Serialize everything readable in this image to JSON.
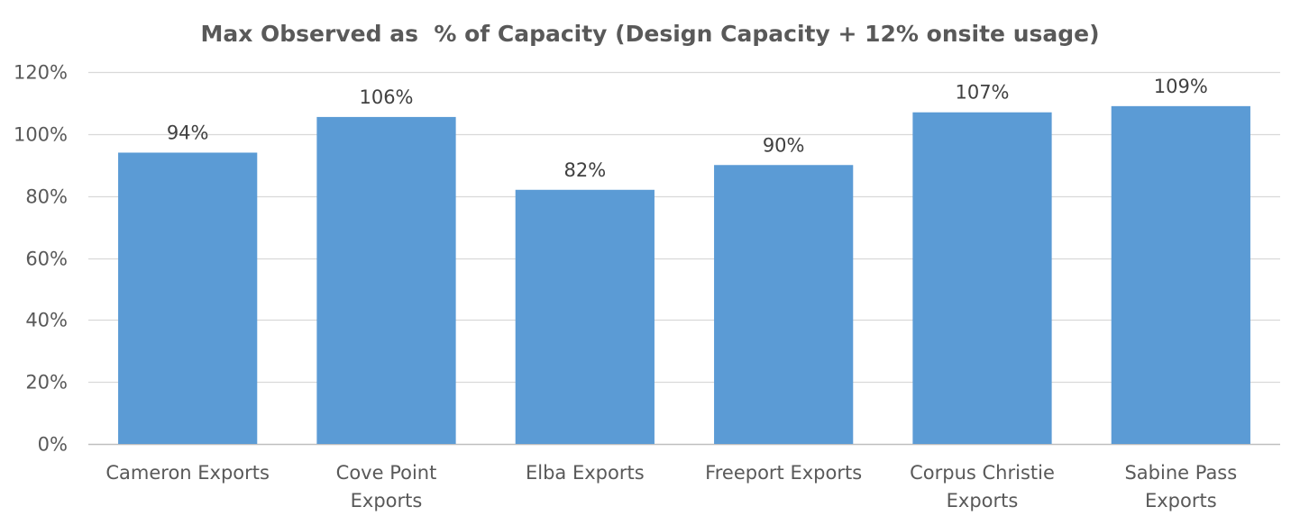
{
  "chart_data": {
    "type": "bar",
    "title": "Max Observed as  % of Capacity (Design Capacity + 12% onsite usage)",
    "xlabel": "",
    "ylabel": "",
    "categories": [
      [
        "Cameron Exports"
      ],
      [
        "Cove Point",
        "Exports"
      ],
      [
        "Elba Exports"
      ],
      [
        "Freeport Exports"
      ],
      [
        "Corpus Christie",
        "Exports"
      ],
      [
        "Sabine Pass",
        "Exports"
      ]
    ],
    "values": [
      0.94,
      1.055,
      0.82,
      0.9,
      1.07,
      1.09
    ],
    "data_labels": [
      "94%",
      "106%",
      "82%",
      "90%",
      "107%",
      "109%"
    ],
    "ylim": [
      0,
      1.2
    ],
    "yticks": [
      0,
      0.2,
      0.4,
      0.6,
      0.8,
      1.0,
      1.2
    ],
    "ytick_labels": [
      "0%",
      "20%",
      "40%",
      "60%",
      "80%",
      "100%",
      "120%"
    ],
    "grid": true,
    "legend": "none",
    "colors": {
      "bar": "#5B9BD5",
      "grid": "#D9D9D9",
      "axis": "#BFBFBF",
      "text": "#595959"
    }
  }
}
